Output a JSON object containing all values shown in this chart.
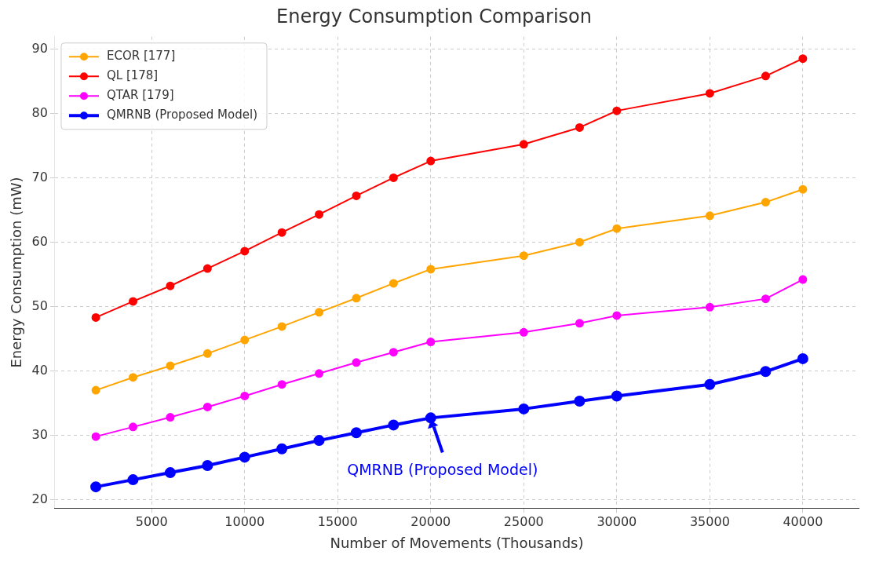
{
  "chart_data": {
    "type": "line",
    "title": "Energy Consumption Comparison",
    "xlabel": "Number of Movements (Thousands)",
    "ylabel": "Energy Consumption (mW)",
    "x": [
      2000,
      4000,
      6000,
      8000,
      10000,
      12000,
      14000,
      16000,
      18000,
      20000,
      25000,
      28000,
      30000,
      35000,
      38000,
      40000
    ],
    "series": [
      {
        "name": "ECOR [177]",
        "color": "#ffa500",
        "values": [
          37.0,
          39.0,
          40.8,
          42.7,
          44.8,
          46.9,
          49.1,
          51.3,
          53.6,
          55.8,
          57.9,
          60.0,
          62.1,
          64.1,
          66.2,
          68.2
        ]
      },
      {
        "name": "QL [178]",
        "color": "#ff0000",
        "values": [
          48.3,
          50.8,
          53.2,
          55.9,
          58.6,
          61.5,
          64.3,
          67.2,
          70.0,
          72.6,
          75.2,
          77.8,
          80.4,
          83.1,
          85.8,
          88.5
        ]
      },
      {
        "name": "QTAR [179]",
        "color": "#ff00ff",
        "values": [
          29.8,
          31.3,
          32.8,
          34.4,
          36.1,
          37.9,
          39.6,
          41.3,
          42.9,
          44.5,
          46.0,
          47.4,
          48.6,
          49.9,
          51.2,
          54.2
        ]
      },
      {
        "name": "QMRNB (Proposed Model)",
        "color": "#0000ff",
        "values": [
          22.0,
          23.1,
          24.2,
          25.3,
          26.6,
          27.9,
          29.2,
          30.4,
          31.6,
          32.7,
          34.1,
          35.3,
          36.1,
          37.9,
          39.9,
          41.9
        ]
      }
    ],
    "xlim": [
      -200,
      43000
    ],
    "ylim": [
      18.7,
      91.9
    ],
    "xticks": [
      5000,
      10000,
      15000,
      20000,
      25000,
      30000,
      35000,
      40000
    ],
    "yticks": [
      20,
      30,
      40,
      50,
      60,
      70,
      80,
      90
    ],
    "annotations": [
      {
        "text": "QMRNB (Proposed Model)",
        "x": 20000,
        "y": 32.7
      }
    ],
    "grid": true,
    "legend": "top left",
    "marker": "circle",
    "line_style": "solid"
  }
}
